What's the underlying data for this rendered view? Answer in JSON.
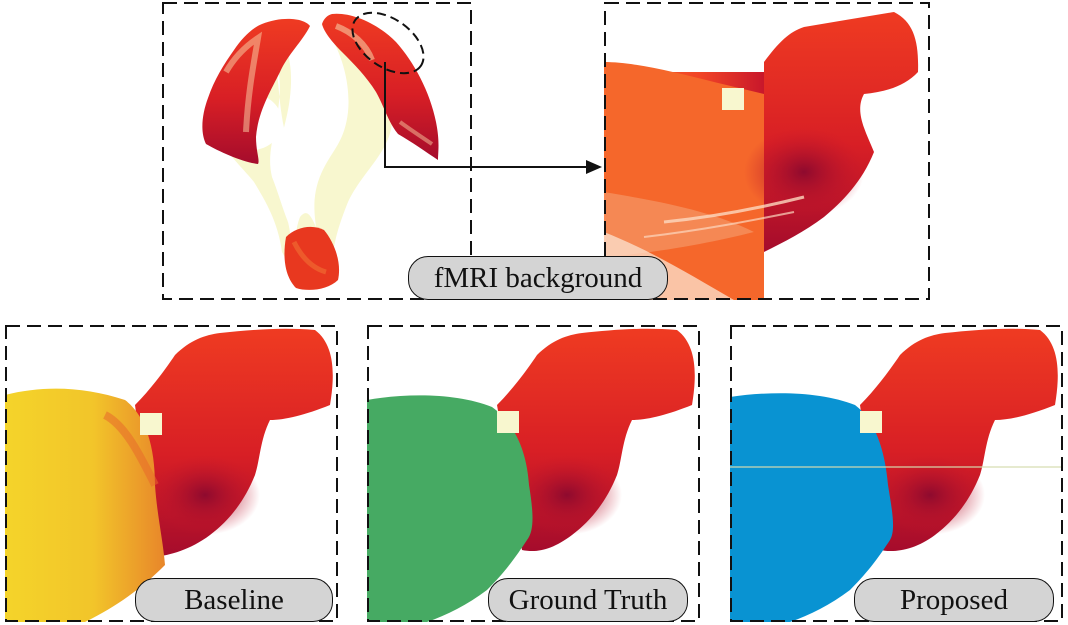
{
  "labels": {
    "fmri": "fMRI background",
    "baseline": "Baseline",
    "ground_truth": "Ground Truth",
    "proposed": "Proposed"
  },
  "colors": {
    "fiber_dark": "#b3102a",
    "fiber_mid": "#e2261f",
    "fiber_light": "#f2522a",
    "brain_bg": "#f8f7cf",
    "baseline": "#f2cc2a",
    "ground_truth": "#46aa63",
    "proposed": "#0993d2",
    "label_bg": "#d4d4d4"
  }
}
